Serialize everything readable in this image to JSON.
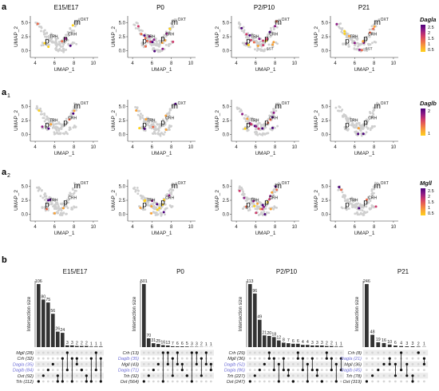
{
  "panel_labels": {
    "a": "a",
    "a1": "a",
    "a1_sub": "1",
    "a2": "a",
    "a2_sub": "2",
    "b": "b"
  },
  "stages": [
    "E15/E17",
    "P0",
    "P2/P10",
    "P21"
  ],
  "umap": {
    "xlabel": "UMAP_1",
    "ylabel": "UMAP_2",
    "xticks": [
      "4",
      "6",
      "8",
      "10"
    ],
    "yticks": [
      "0.0",
      "2.5",
      "5.0"
    ],
    "cluster_labels": {
      "m": "m",
      "m_sup": "OXT",
      "p": "p",
      "trh": "TRH",
      "crh": "CRH",
      "sst": "SST"
    },
    "genes": [
      {
        "name": "Dagla",
        "legend_ticks": [
          "2.5",
          "2",
          "1.5",
          "1",
          "0.5"
        ]
      },
      {
        "name": "Daglb",
        "legend_ticks": [
          "2",
          "1"
        ]
      },
      {
        "name": "Mgll",
        "legend_ticks": [
          "2.5",
          "2",
          "1.5",
          "1",
          "0.5"
        ]
      }
    ],
    "colors": {
      "background_cells": "#cfcfcf",
      "low": "#ffd21a",
      "mid": "#e8506a",
      "high": "#4b007a"
    }
  },
  "chart_data": [
    {
      "type": "bar",
      "title": "E15/E17",
      "ylabel": "Intersection size",
      "values": [
        106,
        80,
        75,
        56,
        26,
        24,
        3,
        3,
        2,
        2,
        2,
        1,
        1,
        1
      ],
      "sets": [
        {
          "label": "Mgll (28)",
          "highlight": false
        },
        {
          "label": "Crh (32)",
          "highlight": false
        },
        {
          "label": "Dagla (35)",
          "highlight": true
        },
        {
          "label": "Daglb (84)",
          "highlight": true
        },
        {
          "label": "Oxt (92)",
          "highlight": false
        },
        {
          "label": "Trh (112)",
          "highlight": false
        }
      ]
    },
    {
      "type": "bar",
      "title": "P0",
      "ylabel": "Intersection size",
      "values": [
        501,
        70,
        31,
        25,
        16,
        13,
        7,
        6,
        6,
        5,
        3,
        3,
        2,
        1,
        1
      ],
      "sets": [
        {
          "label": "Crh (13)",
          "highlight": false
        },
        {
          "label": "Daglb (35)",
          "highlight": true
        },
        {
          "label": "Mgll (43)",
          "highlight": false
        },
        {
          "label": "Dagla (71)",
          "highlight": true
        },
        {
          "label": "Trh (92)",
          "highlight": false
        },
        {
          "label": "Oxt (564)",
          "highlight": false
        }
      ]
    },
    {
      "type": "bar",
      "title": "P2/P10",
      "ylabel": "Intersection size",
      "values": [
        113,
        96,
        49,
        21,
        20,
        18,
        12,
        8,
        7,
        6,
        6,
        4,
        4,
        3,
        3,
        3,
        2,
        2,
        1,
        1
      ],
      "sets": [
        {
          "label": "Crh (29)",
          "highlight": false
        },
        {
          "label": "Mgll (36)",
          "highlight": false
        },
        {
          "label": "Daglb (52)",
          "highlight": true
        },
        {
          "label": "Dagla (86)",
          "highlight": true
        },
        {
          "label": "Trh (227)",
          "highlight": false
        },
        {
          "label": "Oxt (247)",
          "highlight": false
        }
      ]
    },
    {
      "type": "bar",
      "title": "P21",
      "ylabel": "Intersection size",
      "values": [
        246,
        48,
        19,
        16,
        10,
        6,
        4,
        3,
        3,
        2,
        1
      ],
      "sets": [
        {
          "label": "Crh (8)",
          "highlight": false
        },
        {
          "label": "Dagla (21)",
          "highlight": true
        },
        {
          "label": "Mgll (36)",
          "highlight": false
        },
        {
          "label": "Daglb (45)",
          "highlight": true
        },
        {
          "label": "Trh (78)",
          "highlight": false
        },
        {
          "label": "Oxt (319)",
          "highlight": false
        }
      ]
    }
  ]
}
